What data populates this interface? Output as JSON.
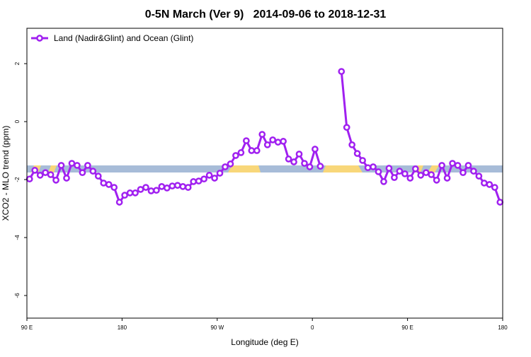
{
  "chart_data": {
    "type": "line",
    "title": "0-5N March (Ver 9)   2014-09-06 to 2018-12-31",
    "xlabel": "Longitude (deg E)",
    "ylabel": "XCO2 - MLO trend (ppm)",
    "xlim": [
      90,
      540
    ],
    "ylim": [
      -6.78,
      3.22
    ],
    "xticks": [
      {
        "value": 90,
        "label": "90 E"
      },
      {
        "value": 180,
        "label": "180"
      },
      {
        "value": 270,
        "label": "90 W"
      },
      {
        "value": 360,
        "label": "0"
      },
      {
        "value": 450,
        "label": "90 E"
      },
      {
        "value": 540,
        "label": "180"
      }
    ],
    "yticks": [
      2,
      0,
      -2,
      -4,
      -6
    ],
    "legend": "top-left",
    "x": [
      92.5,
      97.5,
      102.5,
      107.5,
      112.5,
      117.5,
      122.5,
      127.5,
      132.5,
      137.5,
      142.5,
      147.5,
      152.5,
      157.5,
      162.5,
      167.5,
      172.5,
      177.5,
      182.5,
      187.5,
      192.5,
      197.5,
      202.5,
      207.5,
      212.5,
      217.5,
      222.5,
      227.5,
      232.5,
      237.5,
      242.5,
      247.5,
      252.5,
      257.5,
      262.5,
      267.5,
      272.5,
      277.5,
      282.5,
      287.5,
      292.5,
      297.5,
      302.5,
      307.5,
      312.5,
      317.5,
      322.5,
      327.5,
      332.5,
      337.5,
      342.5,
      347.5,
      352.5,
      357.5,
      362.5,
      367.5,
      372.5,
      377.5,
      382.5,
      387.5,
      392.5,
      397.5,
      402.5,
      407.5,
      412.5,
      417.5,
      422.5,
      427.5,
      432.5,
      437.5,
      442.5,
      447.5,
      452.5,
      457.5,
      462.5,
      467.5,
      472.5,
      477.5,
      482.5,
      487.5,
      492.5,
      497.5,
      502.5,
      507.5,
      512.5,
      517.5,
      522.5,
      527.5,
      532.5,
      537.5
    ],
    "series": [
      {
        "name": "Land (Nadir&Glint) and Ocean (Glint)",
        "color": "#a020f0",
        "values": [
          -1.98,
          -1.68,
          -1.85,
          -1.76,
          -1.83,
          -2.02,
          -1.51,
          -1.95,
          -1.44,
          -1.51,
          -1.76,
          -1.51,
          -1.71,
          -1.88,
          -2.12,
          -2.17,
          -2.27,
          -2.78,
          -2.54,
          -2.46,
          -2.46,
          -2.34,
          -2.27,
          -2.39,
          -2.37,
          -2.24,
          -2.29,
          -2.22,
          -2.2,
          -2.24,
          -2.27,
          -2.07,
          -2.05,
          -1.98,
          -1.85,
          -1.95,
          -1.78,
          -1.56,
          -1.46,
          -1.17,
          -1.07,
          -0.66,
          -1.0,
          -1.0,
          -0.44,
          -0.8,
          -0.63,
          -0.71,
          -0.68,
          -1.29,
          -1.39,
          -1.12,
          -1.44,
          -1.56,
          -0.95,
          -1.54,
          null,
          null,
          null,
          1.73,
          -0.2,
          -0.8,
          -1.1,
          -1.34,
          -1.59,
          -1.56,
          -1.73,
          -2.07,
          -1.61,
          -1.93,
          -1.71,
          -1.8,
          -1.95,
          -1.63,
          -1.85,
          -1.76,
          -1.83,
          -2.02,
          -1.51,
          -1.95,
          -1.44,
          -1.51,
          -1.76,
          -1.51,
          -1.71,
          -1.88,
          -2.12,
          -2.17,
          -2.27,
          -2.78
        ]
      }
    ]
  }
}
